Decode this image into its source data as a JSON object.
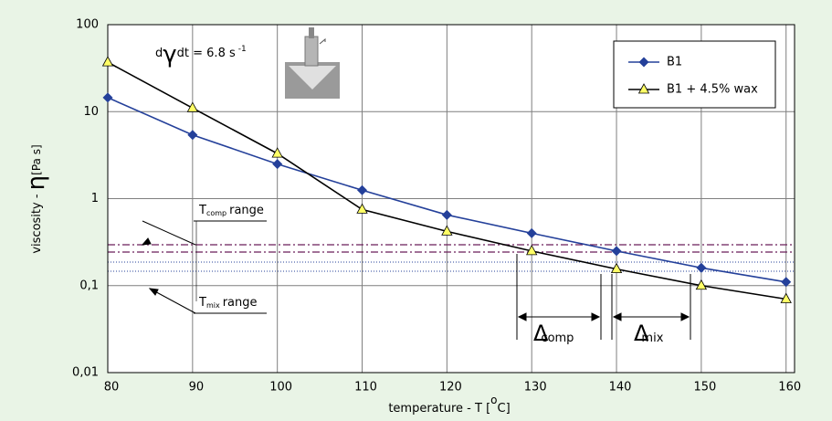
{
  "chart_data": {
    "type": "line",
    "x": [
      80,
      90,
      100,
      110,
      120,
      130,
      140,
      150,
      160
    ],
    "series": [
      {
        "name": "B1",
        "color": "#24409a",
        "marker": "diamond",
        "values": [
          14.5,
          5.4,
          2.5,
          1.25,
          0.65,
          0.4,
          0.25,
          0.16,
          0.11
        ]
      },
      {
        "name": "B1 + 4.5% wax",
        "color": "#000000",
        "marker": "triangle",
        "values": [
          37,
          11,
          3.3,
          0.75,
          0.42,
          0.25,
          0.155,
          0.1,
          0.07
        ]
      }
    ],
    "xlim": [
      80,
      161
    ],
    "xticks": [
      80,
      90,
      100,
      110,
      120,
      130,
      140,
      150,
      160
    ],
    "ylim": [
      0.01,
      100
    ],
    "log_y": true,
    "yticks": [
      {
        "value": 0.01,
        "label": "0,01"
      },
      {
        "value": 0.1,
        "label": "0,1"
      },
      1,
      10,
      100
    ],
    "grid": true,
    "legend": "upper right",
    "x_label": {
      "text": "temperature - T  [",
      "degree": "o",
      "unit": "C]"
    },
    "y_label": {
      "text": "viscosity - ",
      "symbol": "η",
      "unit": "[Pa s]"
    },
    "annotations": {
      "rate": {
        "d": "d",
        "symbol": "γ",
        "text": "dt = 6.8 s",
        "exp": "-1"
      },
      "t_comp": {
        "t": "T",
        "sub": "comp",
        "text": "range"
      },
      "t_mix": {
        "t": "T",
        "sub": "mix",
        "text": "range"
      },
      "delta_comp": {
        "symbol": "Δ",
        "sub": "comp"
      },
      "delta_mix": {
        "symbol": "Δ",
        "sub": "mix"
      }
    }
  }
}
